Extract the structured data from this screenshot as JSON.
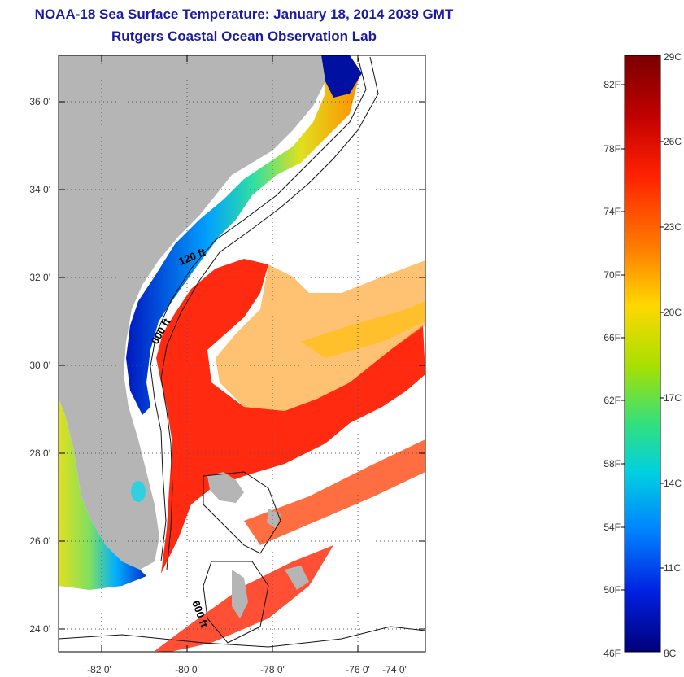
{
  "header": {
    "title": "NOAA-18 Sea Surface Temperature:  January 18, 2014 2039 GMT",
    "subtitle": "Rutgers Coastal Ocean Observation Lab"
  },
  "map": {
    "lon_labels": [
      "-82 0'",
      "-80 0'",
      "-78 0'",
      "-76 0'",
      "-74 0'"
    ],
    "lat_labels": [
      "36 0'",
      "34 0'",
      "32 0'",
      "30 0'",
      "28 0'",
      "26 0'",
      "24 0'"
    ],
    "contour_labels": [
      "120 ft",
      "600 ft",
      "600 ft"
    ],
    "land_color": "#b5b5b5"
  },
  "colorbar": {
    "celsius_labels": [
      "29C",
      "26C",
      "23C",
      "20C",
      "17C",
      "14C",
      "11C",
      "8C"
    ],
    "fahrenheit_labels": [
      "82F",
      "78F",
      "74F",
      "70F",
      "66F",
      "62F",
      "58F",
      "54F",
      "50F",
      "46F"
    ],
    "range_c": [
      8,
      29
    ],
    "colors": [
      "#7a0000",
      "#e00000",
      "#ff6a00",
      "#ffd800",
      "#a0e000",
      "#00d8d0",
      "#0070ff",
      "#0000c8",
      "#00007a"
    ]
  }
}
